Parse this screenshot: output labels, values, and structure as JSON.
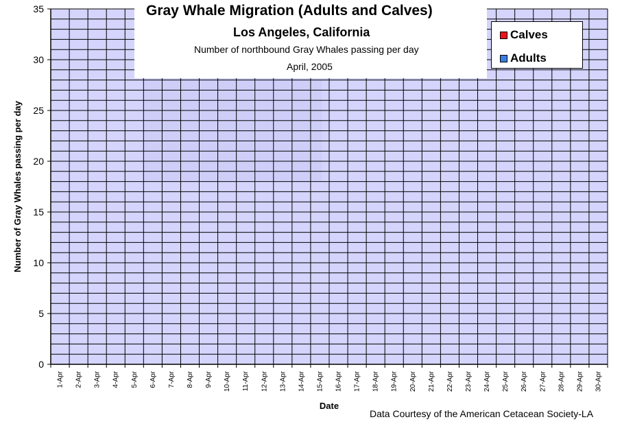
{
  "chart_data": {
    "type": "bar",
    "stacked": true,
    "title": "Gray Whale Migration (Adults and Calves)",
    "subtitle": "Los Angeles, California",
    "description": "Number of northbound Gray Whales passing per day",
    "date_label": "April, 2005",
    "xlabel": "Date",
    "ylabel": "Number of Gray Whales passing per day",
    "ylim": [
      0,
      35
    ],
    "y_major_step": 5,
    "y_minor_step": 1,
    "y_ticks": [
      "0",
      "5",
      "10",
      "15",
      "20",
      "25",
      "30",
      "35"
    ],
    "categories": [
      "1-Apr",
      "2-Apr",
      "3-Apr",
      "4-Apr",
      "5-Apr",
      "6-Apr",
      "7-Apr",
      "8-Apr",
      "9-Apr",
      "10-Apr",
      "11-Apr",
      "12-Apr",
      "13-Apr",
      "14-Apr",
      "15-Apr",
      "16-Apr",
      "17-Apr",
      "18-Apr",
      "19-Apr",
      "20-Apr",
      "21-Apr",
      "22-Apr",
      "23-Apr",
      "24-Apr",
      "25-Apr",
      "26-Apr",
      "27-Apr",
      "28-Apr",
      "29-Apr",
      "30-Apr"
    ],
    "series": [
      {
        "name": "Calves",
        "color": "#e8141c",
        "values": [
          0,
          0,
          0,
          0,
          0,
          0,
          0,
          0,
          0,
          0,
          0,
          0,
          0,
          0,
          0,
          0,
          0,
          0,
          0,
          0,
          0,
          0,
          0,
          0,
          0,
          0,
          0,
          0,
          0,
          0
        ]
      },
      {
        "name": "Adults",
        "color": "#3a7de0",
        "values": [
          0,
          0,
          0,
          0,
          0,
          0,
          0,
          0,
          0,
          0,
          0,
          0,
          0,
          0,
          0,
          0,
          0,
          0,
          0,
          0,
          0,
          0,
          0,
          0,
          0,
          0,
          0,
          0,
          0,
          0
        ]
      }
    ],
    "legend_position": "top-right",
    "grid": true,
    "plot_background": "#d4d4fc"
  },
  "credit": "Data Courtesy of the American Cetacean Society-LA"
}
